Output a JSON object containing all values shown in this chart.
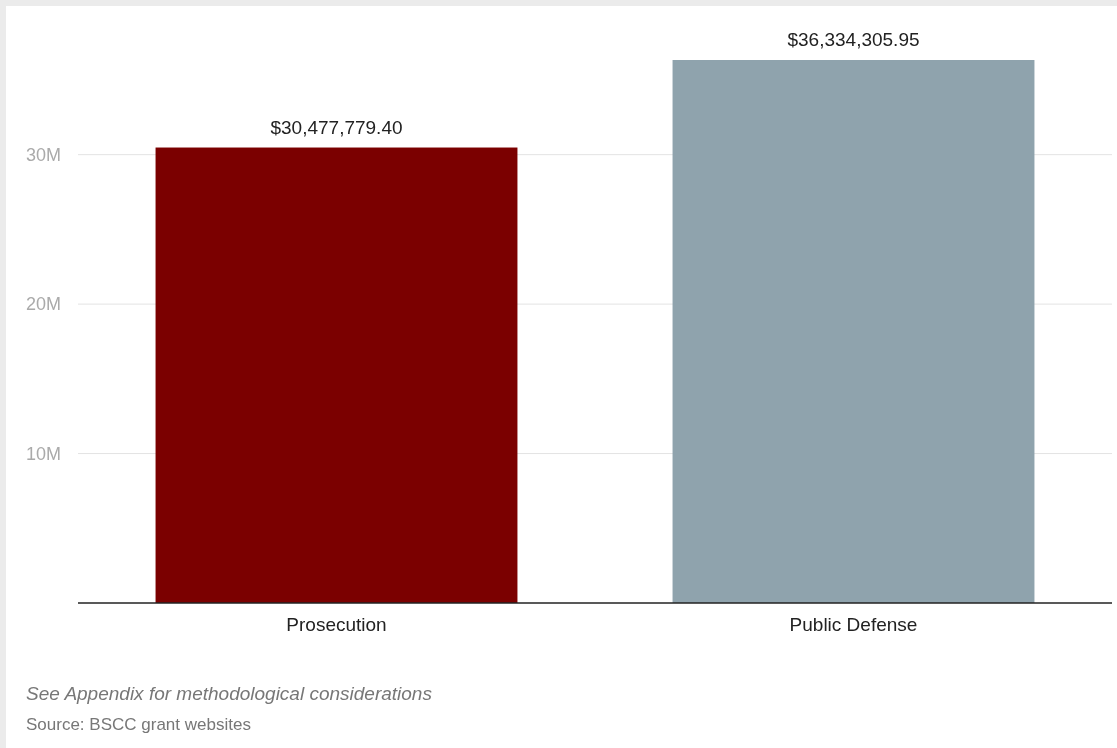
{
  "chart_data": {
    "type": "bar",
    "categories": [
      "Prosecution",
      "Public Defense"
    ],
    "values": [
      30477779.4,
      36334305.95
    ],
    "colors": [
      "#7b0000",
      "#8fa3ad"
    ],
    "value_labels": [
      "$30,477,779.40",
      "$36,334,305.95"
    ],
    "ylim": [
      0,
      36334305.95
    ],
    "yticks": [
      {
        "value": 10000000,
        "label": "10M"
      },
      {
        "value": 20000000,
        "label": "20M"
      },
      {
        "value": 30000000,
        "label": "30M"
      }
    ],
    "grid": "y",
    "annotations": [
      "See Appendix for methodological considerations",
      "Source: BSCC grant websites"
    ]
  }
}
